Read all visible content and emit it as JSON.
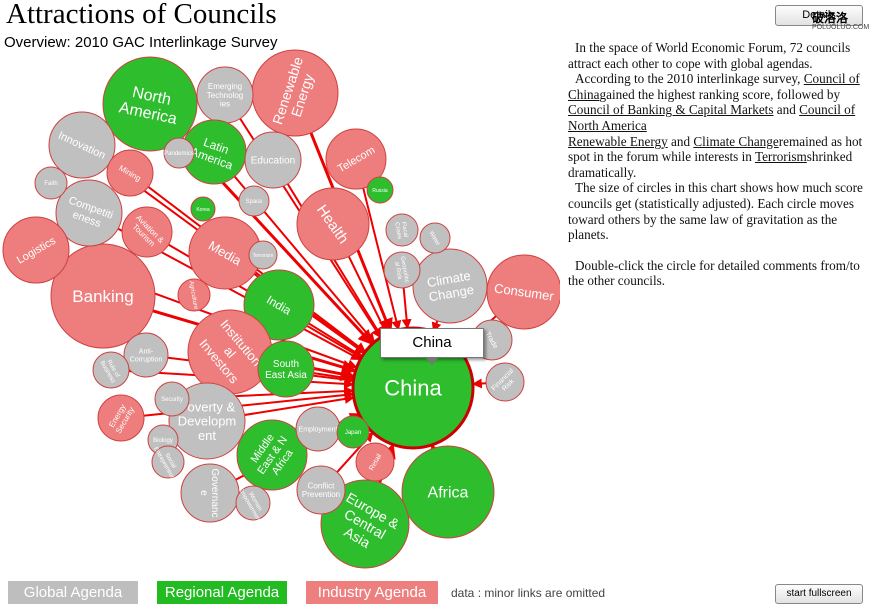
{
  "page": {
    "title": "Attractions of Councils",
    "subtitle": "Overview: 2010 GAC Interlinkage Survey",
    "details_button": "Details",
    "fullscreen_button": "start fullscreen",
    "watermark": "破洛洛",
    "watermark_url": "POLUOLUO.COM"
  },
  "description": {
    "p1": "In the space of World Economic Forum,  72 councils attract each other to cope with global agendas.",
    "p2_pre": "According to the 2010 interlinkage survey, ",
    "p2_link1": "Council of China",
    "p2_mid1": "gained the highest ranking score, followed by ",
    "p2_link2": "Council of Banking & Capital Markets",
    "p2_mid2": " and ",
    "p2_link3": "Council of North America",
    "p2_link4": "Renewable Energy",
    "p2_mid3": " and ",
    "p2_link5": "Climate Change",
    "p2_mid4": "remained as hot spot in the forum while interests in ",
    "p2_link6": "Terrorism",
    "p2_end": "shrinked dramatically.",
    "p3": "The size of circles in this chart shows how much score councils get (statistically  adjusted). Each circle moves toward others by the same law of gravitation as the planets.",
    "p4": "Double-click the circle for detailed comments from/to the other councils."
  },
  "legend": {
    "global": "Global Agenda",
    "regional": "Regional Agenda",
    "industry": "Industry Agenda",
    "note": "data : minor links are omitted"
  },
  "tooltip": "China",
  "colors": {
    "global": "#c0c0c0",
    "regional": "#2dbd2d",
    "industry": "#ee7d7d",
    "link": "#ee0000"
  },
  "nodes": [
    {
      "label": "China",
      "category": "regional"
    },
    {
      "label": "North America",
      "category": "regional"
    },
    {
      "label": "Banking",
      "category": "industry"
    },
    {
      "label": "Renewable Energy",
      "category": "industry"
    },
    {
      "label": "Emerging Technologies",
      "category": "global"
    },
    {
      "label": "Latin America",
      "category": "regional"
    },
    {
      "label": "Innovation",
      "category": "global"
    },
    {
      "label": "Education",
      "category": "global"
    },
    {
      "label": "Telecom",
      "category": "industry"
    },
    {
      "label": "Mining",
      "category": "industry"
    },
    {
      "label": "Competitiveness",
      "category": "global"
    },
    {
      "label": "Health",
      "category": "industry"
    },
    {
      "label": "Logistics",
      "category": "industry"
    },
    {
      "label": "Aviation & Tourism",
      "category": "industry"
    },
    {
      "label": "Media",
      "category": "industry"
    },
    {
      "label": "Climate Change",
      "category": "global"
    },
    {
      "label": "Consumer",
      "category": "industry"
    },
    {
      "label": "India",
      "category": "regional"
    },
    {
      "label": "Institutional Investors",
      "category": "industry"
    },
    {
      "label": "South East Asia",
      "category": "regional"
    },
    {
      "label": "Poverty & Development",
      "category": "global"
    },
    {
      "label": "Middle East & North Africa",
      "category": "regional"
    },
    {
      "label": "Africa",
      "category": "regional"
    },
    {
      "label": "Europe & Central Asia",
      "category": "regional"
    },
    {
      "label": "Anti-Corruption",
      "category": "global"
    },
    {
      "label": "Energy Security",
      "category": "industry"
    },
    {
      "label": "Governance",
      "category": "global"
    },
    {
      "label": "Financial Risk",
      "category": "global"
    },
    {
      "label": "Geopolitical Risk",
      "category": "global"
    },
    {
      "label": "Conflict Prevention",
      "category": "global"
    },
    {
      "label": "Rule of Business",
      "category": "global"
    },
    {
      "label": "Security",
      "category": "global"
    },
    {
      "label": "Biology",
      "category": "global"
    },
    {
      "label": "Korea",
      "category": "regional"
    },
    {
      "label": "Fiscal Crises",
      "category": "global"
    },
    {
      "label": "Water",
      "category": "global"
    },
    {
      "label": "Russia",
      "category": "regional"
    },
    {
      "label": "Trade",
      "category": "global"
    },
    {
      "label": "Employment",
      "category": "global"
    },
    {
      "label": "Women Empowerment",
      "category": "global"
    },
    {
      "label": "Retail",
      "category": "industry"
    },
    {
      "label": "Social Entrepreneurs",
      "category": "global"
    },
    {
      "label": "Agriculture",
      "category": "industry"
    },
    {
      "label": "Pandemics",
      "category": "global"
    },
    {
      "label": "Japan",
      "category": "regional"
    },
    {
      "label": "Faith",
      "category": "global"
    },
    {
      "label": "Space",
      "category": "global"
    },
    {
      "label": "Terrorism",
      "category": "global"
    }
  ]
}
